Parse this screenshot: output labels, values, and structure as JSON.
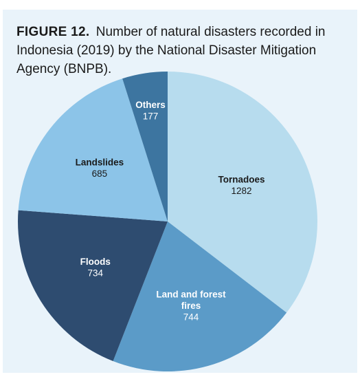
{
  "figure": {
    "label": "FIGURE 12.",
    "caption": "Number of natural disasters recorded in Indonesia (2019) by the National Disaster Mitigation Agency (BNPB)."
  },
  "chart_data": {
    "type": "pie",
    "title": "FIGURE 12. Number of natural disasters recorded in Indonesia (2019) by the National Disaster Mitigation Agency (BNPB).",
    "slices": [
      {
        "label": "Tornadoes",
        "value": 1282,
        "color": "#b7dcee",
        "text_color": "#1a1a1a"
      },
      {
        "label": "Land and forest fires",
        "value": 744,
        "color": "#5b9bc8",
        "text_color": "#ffffff"
      },
      {
        "label": "Floods",
        "value": 734,
        "color": "#2e4c70",
        "text_color": "#ffffff"
      },
      {
        "label": "Landslides",
        "value": 685,
        "color": "#8cc4e8",
        "text_color": "#1a1a1a"
      },
      {
        "label": "Others",
        "value": 177,
        "color": "#3d75a0",
        "text_color": "#ffffff"
      }
    ],
    "start": "12 o'clock",
    "direction": "clockwise",
    "legend": "none (labels inside slices)"
  }
}
